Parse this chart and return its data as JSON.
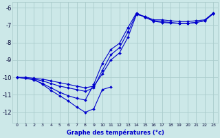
{
  "xlabel": "Graphe des températures (°c)",
  "bg_color": "#cce8e8",
  "grid_color": "#aacccc",
  "line_color": "#0000cc",
  "marker": "D",
  "markersize": 2.0,
  "linewidth": 0.8,
  "xlim": [
    -0.5,
    23.5
  ],
  "ylim": [
    -12.6,
    -5.7
  ],
  "xticks": [
    0,
    1,
    2,
    3,
    4,
    5,
    6,
    7,
    8,
    9,
    10,
    11,
    12,
    13,
    14,
    15,
    16,
    17,
    18,
    19,
    20,
    21,
    22,
    23
  ],
  "yticks": [
    -12,
    -11,
    -10,
    -9,
    -8,
    -7,
    -6
  ],
  "line1_x": [
    0,
    1,
    2,
    3,
    4,
    5,
    6,
    7,
    8,
    9,
    10,
    11,
    12,
    13,
    14,
    15,
    16,
    17,
    18,
    19,
    20,
    21,
    22,
    23
  ],
  "line1_y": [
    -10.0,
    -10.0,
    -10.05,
    -10.1,
    -10.2,
    -10.3,
    -10.4,
    -10.5,
    -10.6,
    -10.5,
    -9.8,
    -9.0,
    -8.6,
    -7.7,
    -6.4,
    -6.5,
    -6.7,
    -6.7,
    -6.75,
    -6.8,
    -6.8,
    -6.75,
    -6.7,
    -6.3
  ],
  "line2_x": [
    0,
    1,
    2,
    3,
    4,
    5,
    6,
    7,
    8,
    9,
    10,
    11,
    12,
    13,
    14,
    15,
    16,
    17,
    18,
    19,
    20,
    21,
    22,
    23
  ],
  "line2_y": [
    -10.0,
    -10.05,
    -10.1,
    -10.2,
    -10.35,
    -10.5,
    -10.6,
    -10.7,
    -10.8,
    -10.6,
    -9.6,
    -8.7,
    -8.3,
    -7.4,
    -6.35,
    -6.55,
    -6.75,
    -6.8,
    -6.85,
    -6.9,
    -6.9,
    -6.85,
    -6.75,
    -6.35
  ],
  "line3_x": [
    0,
    1,
    2,
    3,
    4,
    5,
    6,
    7,
    8,
    9,
    10,
    11,
    12,
    13,
    14,
    15,
    16,
    17,
    18,
    19,
    20,
    21,
    22,
    23
  ],
  "line3_y": [
    -10.0,
    -10.05,
    -10.15,
    -10.35,
    -10.6,
    -10.85,
    -11.05,
    -11.2,
    -11.3,
    -10.4,
    -9.2,
    -8.4,
    -8.05,
    -7.15,
    -6.3,
    -6.55,
    -6.78,
    -6.85,
    -6.88,
    -6.9,
    -6.9,
    -6.85,
    -6.75,
    -6.3
  ],
  "line4_x": [
    2,
    3,
    4,
    5,
    6,
    7,
    8,
    9,
    10,
    11
  ],
  "line4_y": [
    -10.1,
    -10.4,
    -10.75,
    -11.05,
    -11.35,
    -11.7,
    -12.0,
    -11.8,
    -10.7,
    -10.55
  ]
}
